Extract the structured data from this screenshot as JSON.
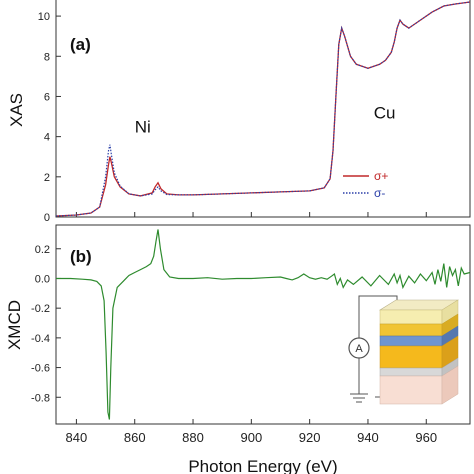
{
  "chart_data": [
    {
      "type": "line",
      "panel_label": "(a)",
      "ylabel": "XAS",
      "xlim": [
        833,
        975
      ],
      "ylim": [
        0,
        11
      ],
      "yticks": [
        "0",
        "2",
        "4",
        "6",
        "8",
        "10"
      ],
      "ytick_values": [
        0,
        2,
        4,
        6,
        8,
        10
      ],
      "annotations": [
        {
          "text": "Ni",
          "x": 860,
          "y": 4.2
        },
        {
          "text": "Cu",
          "x": 942,
          "y": 4.9
        }
      ],
      "legend": {
        "placement": "middle-right",
        "entries": [
          "σ+",
          "σ-"
        ]
      },
      "series": [
        {
          "name": "σ+",
          "color": "#c0282a",
          "style": "solid",
          "x": [
            833,
            840,
            845,
            848,
            850,
            851,
            851.5,
            852,
            853,
            855,
            858,
            862,
            866,
            867,
            868,
            869,
            871,
            875,
            880,
            890,
            900,
            910,
            920,
            925,
            927,
            928,
            929,
            930,
            931,
            932,
            934,
            936,
            938,
            940,
            942,
            944,
            946,
            948,
            949,
            950,
            951,
            952,
            954,
            958,
            962,
            966,
            970,
            975
          ],
          "y": [
            0.05,
            0.1,
            0.2,
            0.5,
            1.6,
            2.6,
            3.0,
            2.7,
            2.0,
            1.5,
            1.15,
            1.05,
            1.2,
            1.5,
            1.7,
            1.4,
            1.15,
            1.1,
            1.1,
            1.15,
            1.2,
            1.25,
            1.3,
            1.45,
            1.9,
            3.3,
            6.0,
            8.6,
            9.4,
            9.0,
            8.0,
            7.6,
            7.5,
            7.4,
            7.5,
            7.6,
            7.8,
            8.2,
            8.7,
            9.4,
            9.8,
            9.6,
            9.4,
            9.8,
            10.2,
            10.5,
            10.6,
            10.7
          ]
        },
        {
          "name": "σ-",
          "color": "#2b3fa8",
          "style": "dotted",
          "x": [
            833,
            840,
            845,
            848,
            850,
            851,
            851.5,
            852,
            853,
            855,
            858,
            862,
            866,
            867,
            868,
            869,
            871,
            875,
            880,
            890,
            900,
            910,
            920,
            925,
            927,
            928,
            929,
            930,
            931,
            932,
            934,
            936,
            938,
            940,
            942,
            944,
            946,
            948,
            949,
            950,
            951,
            952,
            954,
            958,
            962,
            966,
            970,
            975
          ],
          "y": [
            0.05,
            0.1,
            0.2,
            0.5,
            2.0,
            3.3,
            3.6,
            3.1,
            2.2,
            1.55,
            1.15,
            1.05,
            1.15,
            1.35,
            1.5,
            1.3,
            1.12,
            1.1,
            1.1,
            1.15,
            1.2,
            1.25,
            1.3,
            1.45,
            1.9,
            3.3,
            6.0,
            8.6,
            9.4,
            9.0,
            8.0,
            7.6,
            7.5,
            7.4,
            7.5,
            7.6,
            7.8,
            8.2,
            8.7,
            9.4,
            9.8,
            9.6,
            9.4,
            9.8,
            10.2,
            10.5,
            10.6,
            10.7
          ]
        }
      ]
    },
    {
      "type": "line",
      "panel_label": "(b)",
      "xlabel": "Photon Energy (eV)",
      "ylabel": "XMCD",
      "xlim": [
        833,
        975
      ],
      "ylim": [
        -0.98,
        0.36
      ],
      "xticks": [
        "840",
        "860",
        "880",
        "900",
        "920",
        "940",
        "960"
      ],
      "xtick_values": [
        840,
        860,
        880,
        900,
        920,
        940,
        960
      ],
      "yticks": [
        "0.2",
        "0.0",
        "-0.2",
        "-0.4",
        "-0.6",
        "-0.8"
      ],
      "ytick_values": [
        0.2,
        0.0,
        -0.2,
        -0.4,
        -0.6,
        -0.8
      ],
      "inset": {
        "meter_label": "A"
      },
      "series": [
        {
          "name": "XMCD",
          "color": "#2e8b2e",
          "x": [
            833,
            838,
            842,
            845,
            847,
            848.5,
            849.5,
            850.2,
            850.8,
            851.3,
            851.8,
            852.5,
            854,
            856,
            858,
            860,
            862,
            864,
            865.5,
            866.5,
            867.3,
            868,
            868.8,
            870,
            872,
            875,
            880,
            885,
            890,
            895,
            900,
            905,
            910,
            912,
            914,
            916,
            918,
            920,
            922,
            924,
            926,
            927.5,
            928.5,
            929.5,
            930.5,
            931.5,
            933,
            935,
            938,
            941,
            944,
            947,
            949,
            950,
            951,
            952,
            954,
            956,
            958,
            960,
            962,
            963,
            964,
            965,
            966,
            967,
            968,
            969,
            970,
            971,
            972,
            973,
            975
          ],
          "y": [
            0.0,
            0.0,
            -0.005,
            -0.01,
            -0.02,
            -0.05,
            -0.15,
            -0.5,
            -0.9,
            -0.95,
            -0.6,
            -0.2,
            -0.06,
            -0.02,
            0.02,
            0.04,
            0.06,
            0.08,
            0.1,
            0.15,
            0.25,
            0.33,
            0.2,
            0.06,
            0.01,
            0.0,
            0.0,
            0.005,
            -0.005,
            0.0,
            0.0,
            0.005,
            0.01,
            0.0,
            -0.01,
            0.005,
            0.03,
            0.005,
            -0.005,
            0.005,
            -0.005,
            0.015,
            0.03,
            -0.04,
            0.0,
            -0.06,
            -0.01,
            -0.04,
            0.01,
            -0.05,
            0.02,
            -0.04,
            0.03,
            -0.03,
            0.02,
            -0.06,
            0.015,
            -0.03,
            0.03,
            -0.015,
            0.04,
            -0.04,
            0.06,
            -0.02,
            0.1,
            -0.06,
            0.08,
            0.02,
            0.06,
            -0.05,
            0.07,
            0.03,
            0.04
          ]
        }
      ]
    }
  ]
}
